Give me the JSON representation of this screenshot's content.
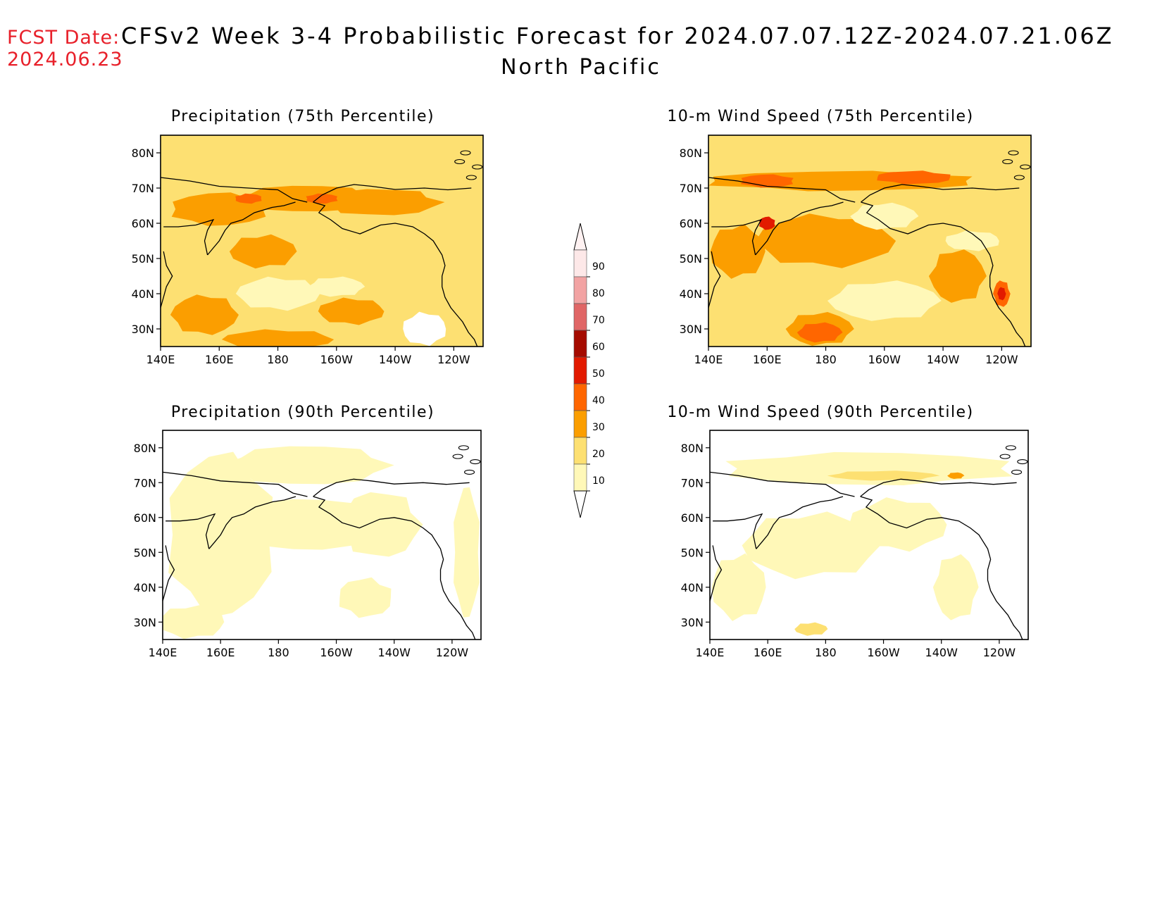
{
  "header": {
    "fcst_label": "FCST Date:",
    "fcst_date": "2024.06.23",
    "title": "CFSv2 Week 3-4 Probabilistic Forecast for 2024.07.07.12Z-2024.07.21.06Z",
    "region": "North Pacific"
  },
  "lon_ticks": [
    "140E",
    "160E",
    "180",
    "160W",
    "140W",
    "120W"
  ],
  "lat_ticks": [
    "80N",
    "70N",
    "60N",
    "50N",
    "40N",
    "30N"
  ],
  "panels": [
    {
      "id": "precip75",
      "title": "Precipitation (75th Percentile)"
    },
    {
      "id": "wind75",
      "title": "10-m Wind Speed (75th Percentile)"
    },
    {
      "id": "precip90",
      "title": "Precipitation (90th Percentile)"
    },
    {
      "id": "wind90",
      "title": "10-m Wind Speed (90th Percentile)"
    }
  ],
  "colorbar": {
    "labels": [
      "90",
      "80",
      "70",
      "60",
      "50",
      "40",
      "30",
      "20",
      "10"
    ],
    "colors": [
      "#fde8e8",
      "#f2a3a3",
      "#e06666",
      "#a50b00",
      "#e21a00",
      "#ff6600",
      "#fb9e00",
      "#fde072",
      "#fff8b8"
    ]
  }
}
